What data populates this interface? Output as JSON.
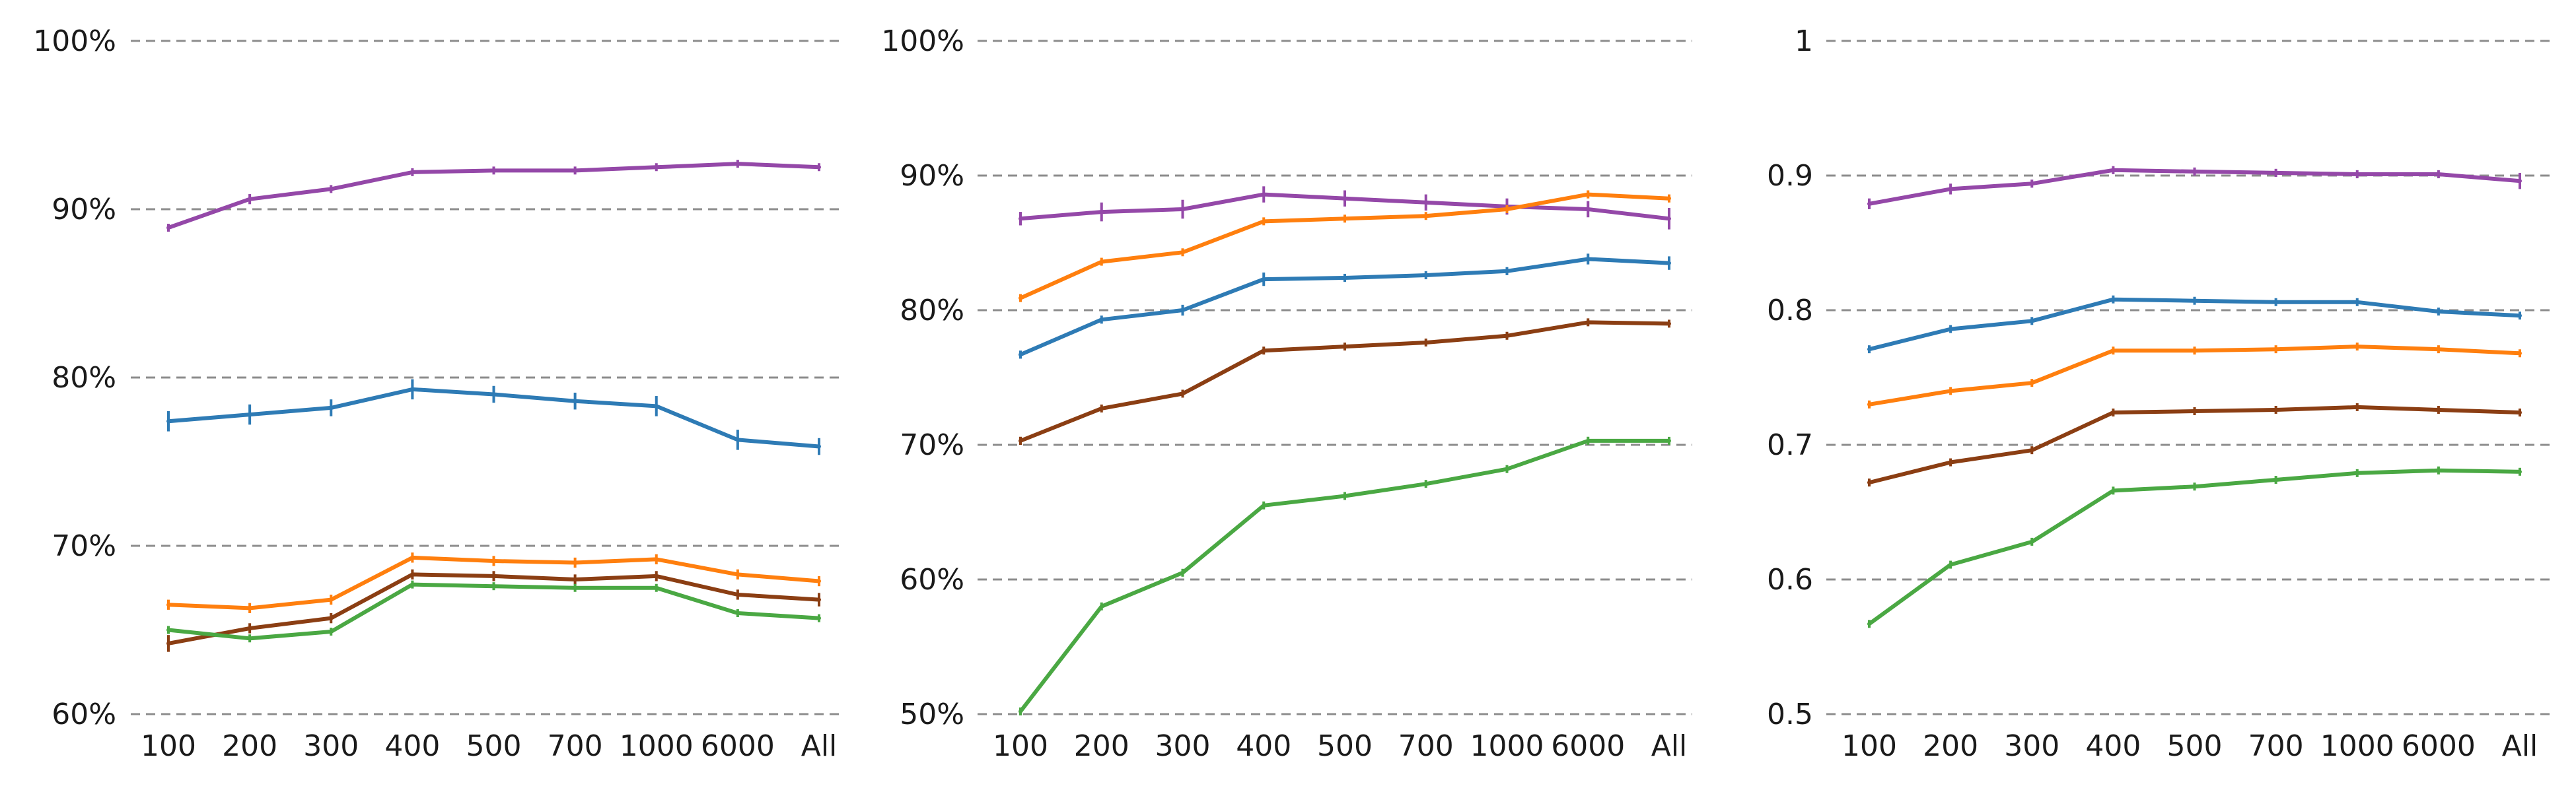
{
  "chart_data": [
    {
      "type": "line",
      "categories": [
        "100",
        "200",
        "300",
        "400",
        "500",
        "700",
        "1000",
        "6000",
        "All"
      ],
      "ylim": [
        60,
        100
      ],
      "yticks": [
        "60%",
        "70%",
        "80%",
        "90%",
        "100%"
      ],
      "ytick_values": [
        60,
        70,
        80,
        90,
        100
      ],
      "grid": true,
      "series": [
        {
          "color": "#9448a8",
          "values": [
            88.9,
            90.6,
            91.2,
            92.2,
            92.3,
            92.3,
            92.5,
            92.7,
            92.5
          ],
          "err": [
            0.2,
            0.3,
            0.2,
            0.2,
            0.2,
            0.2,
            0.2,
            0.2,
            0.2
          ]
        },
        {
          "color": "#2e7bb5",
          "values": [
            77.4,
            77.8,
            78.2,
            79.3,
            79.0,
            78.6,
            78.3,
            76.3,
            75.9
          ],
          "err": [
            0.6,
            0.6,
            0.5,
            0.6,
            0.5,
            0.5,
            0.6,
            0.6,
            0.5
          ]
        },
        {
          "color": "#ff7f0e",
          "values": [
            66.5,
            66.3,
            66.8,
            69.3,
            69.1,
            69.0,
            69.2,
            68.3,
            67.9
          ],
          "err": [
            0.3,
            0.3,
            0.3,
            0.3,
            0.3,
            0.3,
            0.3,
            0.3,
            0.3
          ]
        },
        {
          "color": "#8b3e13",
          "values": [
            64.2,
            65.1,
            65.7,
            68.3,
            68.2,
            68.0,
            68.2,
            67.1,
            66.8
          ],
          "err": [
            0.5,
            0.3,
            0.3,
            0.3,
            0.3,
            0.3,
            0.3,
            0.3,
            0.4
          ]
        },
        {
          "color": "#4aa843",
          "values": [
            65.0,
            64.5,
            64.9,
            67.7,
            67.6,
            67.5,
            67.5,
            66.0,
            65.7
          ],
          "err": [
            0.2,
            0.2,
            0.2,
            0.2,
            0.2,
            0.2,
            0.2,
            0.2,
            0.2
          ]
        }
      ]
    },
    {
      "type": "line",
      "categories": [
        "100",
        "200",
        "300",
        "400",
        "500",
        "700",
        "1000",
        "6000",
        "All"
      ],
      "ylim": [
        50,
        100
      ],
      "yticks": [
        "50%",
        "60%",
        "70%",
        "80%",
        "90%",
        "100%"
      ],
      "ytick_values": [
        50,
        60,
        70,
        80,
        90,
        100
      ],
      "grid": true,
      "series": [
        {
          "color": "#9448a8",
          "values": [
            86.8,
            87.3,
            87.5,
            88.6,
            88.3,
            88.0,
            87.7,
            87.5,
            86.8
          ],
          "err": [
            0.5,
            0.7,
            0.7,
            0.6,
            0.6,
            0.6,
            0.6,
            0.6,
            0.8
          ]
        },
        {
          "color": "#ff7f0e",
          "values": [
            80.9,
            83.6,
            84.3,
            86.6,
            86.8,
            87.0,
            87.5,
            88.6,
            88.3
          ],
          "err": [
            0.2,
            0.2,
            0.2,
            0.2,
            0.2,
            0.2,
            0.2,
            0.3,
            0.3
          ]
        },
        {
          "color": "#2e7bb5",
          "values": [
            76.7,
            79.3,
            80.0,
            82.3,
            82.4,
            82.6,
            82.9,
            83.8,
            83.5
          ],
          "err": [
            0.3,
            0.3,
            0.4,
            0.5,
            0.3,
            0.3,
            0.3,
            0.4,
            0.5
          ]
        },
        {
          "color": "#8b3e13",
          "values": [
            70.3,
            72.7,
            73.8,
            77.0,
            77.3,
            77.6,
            78.1,
            79.1,
            79.0
          ],
          "err": [
            0.3,
            0.2,
            0.2,
            0.2,
            0.2,
            0.2,
            0.2,
            0.2,
            0.2
          ]
        },
        {
          "color": "#4aa843",
          "values": [
            50.2,
            58.0,
            60.5,
            65.5,
            66.2,
            67.1,
            68.2,
            70.3,
            70.3
          ],
          "err": [
            0.2,
            0.2,
            0.2,
            0.2,
            0.2,
            0.2,
            0.2,
            0.3,
            0.2
          ]
        }
      ]
    },
    {
      "type": "line",
      "categories": [
        "100",
        "200",
        "300",
        "400",
        "500",
        "700",
        "1000",
        "6000",
        "All"
      ],
      "ylim": [
        0.5,
        1.0
      ],
      "yticks": [
        "0.5",
        "0.6",
        "0.7",
        "0.8",
        "0.9",
        "1"
      ],
      "ytick_values": [
        0.5,
        0.6,
        0.7,
        0.8,
        0.9,
        1.0
      ],
      "grid": true,
      "series": [
        {
          "color": "#9448a8",
          "values": [
            0.879,
            0.89,
            0.894,
            0.904,
            0.903,
            0.902,
            0.901,
            0.901,
            0.896
          ],
          "err": [
            0.004,
            0.004,
            0.003,
            0.003,
            0.003,
            0.003,
            0.003,
            0.003,
            0.006
          ]
        },
        {
          "color": "#2e7bb5",
          "values": [
            0.771,
            0.786,
            0.792,
            0.808,
            0.807,
            0.806,
            0.806,
            0.799,
            0.796
          ],
          "err": [
            0.002,
            0.002,
            0.002,
            0.002,
            0.002,
            0.002,
            0.002,
            0.002,
            0.002
          ]
        },
        {
          "color": "#ff7f0e",
          "values": [
            0.73,
            0.74,
            0.746,
            0.77,
            0.77,
            0.771,
            0.773,
            0.771,
            0.768
          ],
          "err": [
            0.002,
            0.002,
            0.002,
            0.002,
            0.002,
            0.002,
            0.002,
            0.002,
            0.002
          ]
        },
        {
          "color": "#8b3e13",
          "values": [
            0.672,
            0.687,
            0.696,
            0.724,
            0.725,
            0.726,
            0.728,
            0.726,
            0.724
          ],
          "err": [
            0.002,
            0.002,
            0.002,
            0.002,
            0.002,
            0.002,
            0.002,
            0.002,
            0.002
          ]
        },
        {
          "color": "#4aa843",
          "values": [
            0.567,
            0.611,
            0.628,
            0.666,
            0.669,
            0.674,
            0.679,
            0.681,
            0.68
          ],
          "err": [
            0.002,
            0.002,
            0.002,
            0.002,
            0.002,
            0.002,
            0.002,
            0.002,
            0.002
          ]
        }
      ]
    }
  ]
}
